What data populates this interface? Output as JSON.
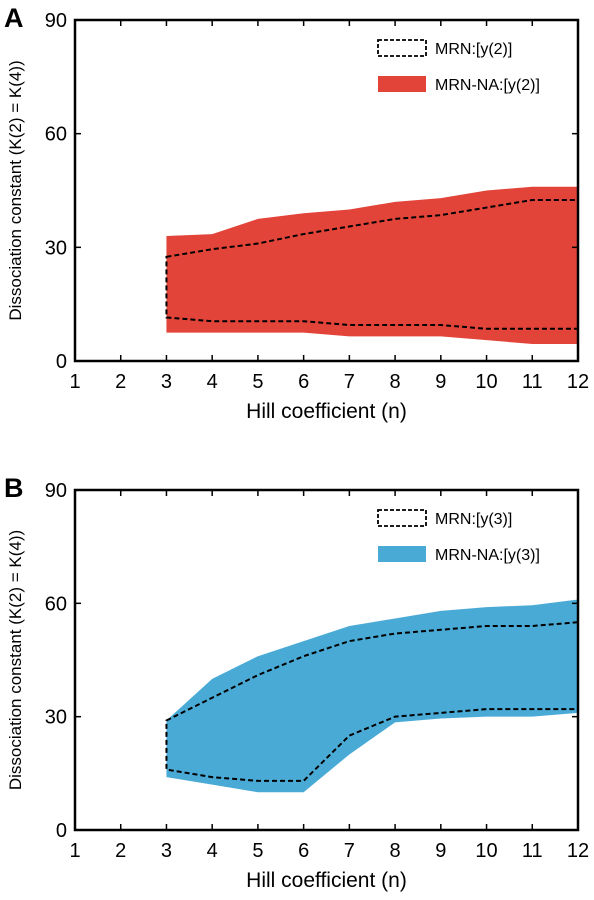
{
  "chart_data": [
    {
      "panel_label": "A",
      "type": "area",
      "xlabel": "Hill coefficient (n)",
      "ylabel": "Dissociation constant (K(2) = K(4))",
      "xlim": [
        1,
        12
      ],
      "ylim": [
        0,
        90
      ],
      "xticks": [
        1,
        2,
        3,
        4,
        5,
        6,
        7,
        8,
        9,
        10,
        11,
        12
      ],
      "yticks": [
        0,
        30,
        60,
        90
      ],
      "legend_position": "top-right",
      "series": [
        {
          "name": "MRN:[y(2)]",
          "style": "dashed-outline",
          "color": "#000000",
          "x": [
            3,
            4,
            5,
            6,
            7,
            8,
            9,
            10,
            11,
            12
          ],
          "upper": [
            27.5,
            29.5,
            31,
            33.5,
            35.5,
            37.5,
            38.5,
            40.5,
            42.5,
            42.5
          ],
          "lower": [
            11.5,
            10.5,
            10.5,
            10.5,
            9.5,
            9.5,
            9.5,
            8.5,
            8.5,
            8.5
          ]
        },
        {
          "name": "MRN-NA:[y(2)]",
          "style": "filled",
          "color": "#e2443a",
          "x": [
            3,
            4,
            5,
            6,
            7,
            8,
            9,
            10,
            11,
            12
          ],
          "upper": [
            33,
            33.5,
            37.5,
            39,
            40,
            42,
            43,
            45,
            46,
            46
          ],
          "lower": [
            7.5,
            7.5,
            7.5,
            7.5,
            6.5,
            6.5,
            6.5,
            5.5,
            4.5,
            4.5
          ]
        }
      ]
    },
    {
      "panel_label": "B",
      "type": "area",
      "xlabel": "Hill coefficient (n)",
      "ylabel": "Dissociation constant (K(2) = K(4))",
      "xlim": [
        1,
        12
      ],
      "ylim": [
        0,
        90
      ],
      "xticks": [
        1,
        2,
        3,
        4,
        5,
        6,
        7,
        8,
        9,
        10,
        11,
        12
      ],
      "yticks": [
        0,
        30,
        60,
        90
      ],
      "legend_position": "top-right",
      "series": [
        {
          "name": "MRN:[y(3)]",
          "style": "dashed-outline",
          "color": "#000000",
          "x": [
            3,
            4,
            5,
            6,
            7,
            8,
            9,
            10,
            11,
            12
          ],
          "upper": [
            29,
            35,
            41,
            46,
            50,
            52,
            53,
            54,
            54,
            55
          ],
          "lower": [
            16,
            14,
            13,
            13,
            25,
            30,
            31,
            32,
            32,
            32
          ]
        },
        {
          "name": "MRN-NA:[y(3)]",
          "style": "filled",
          "color": "#4aaad6",
          "x": [
            3,
            4,
            5,
            6,
            7,
            8,
            9,
            10,
            11,
            12
          ],
          "upper": [
            29,
            40,
            46,
            50,
            54,
            56,
            58,
            59,
            59.5,
            61
          ],
          "lower": [
            14,
            12,
            10,
            10,
            20,
            28.5,
            29.5,
            30,
            30,
            31
          ]
        }
      ]
    }
  ]
}
